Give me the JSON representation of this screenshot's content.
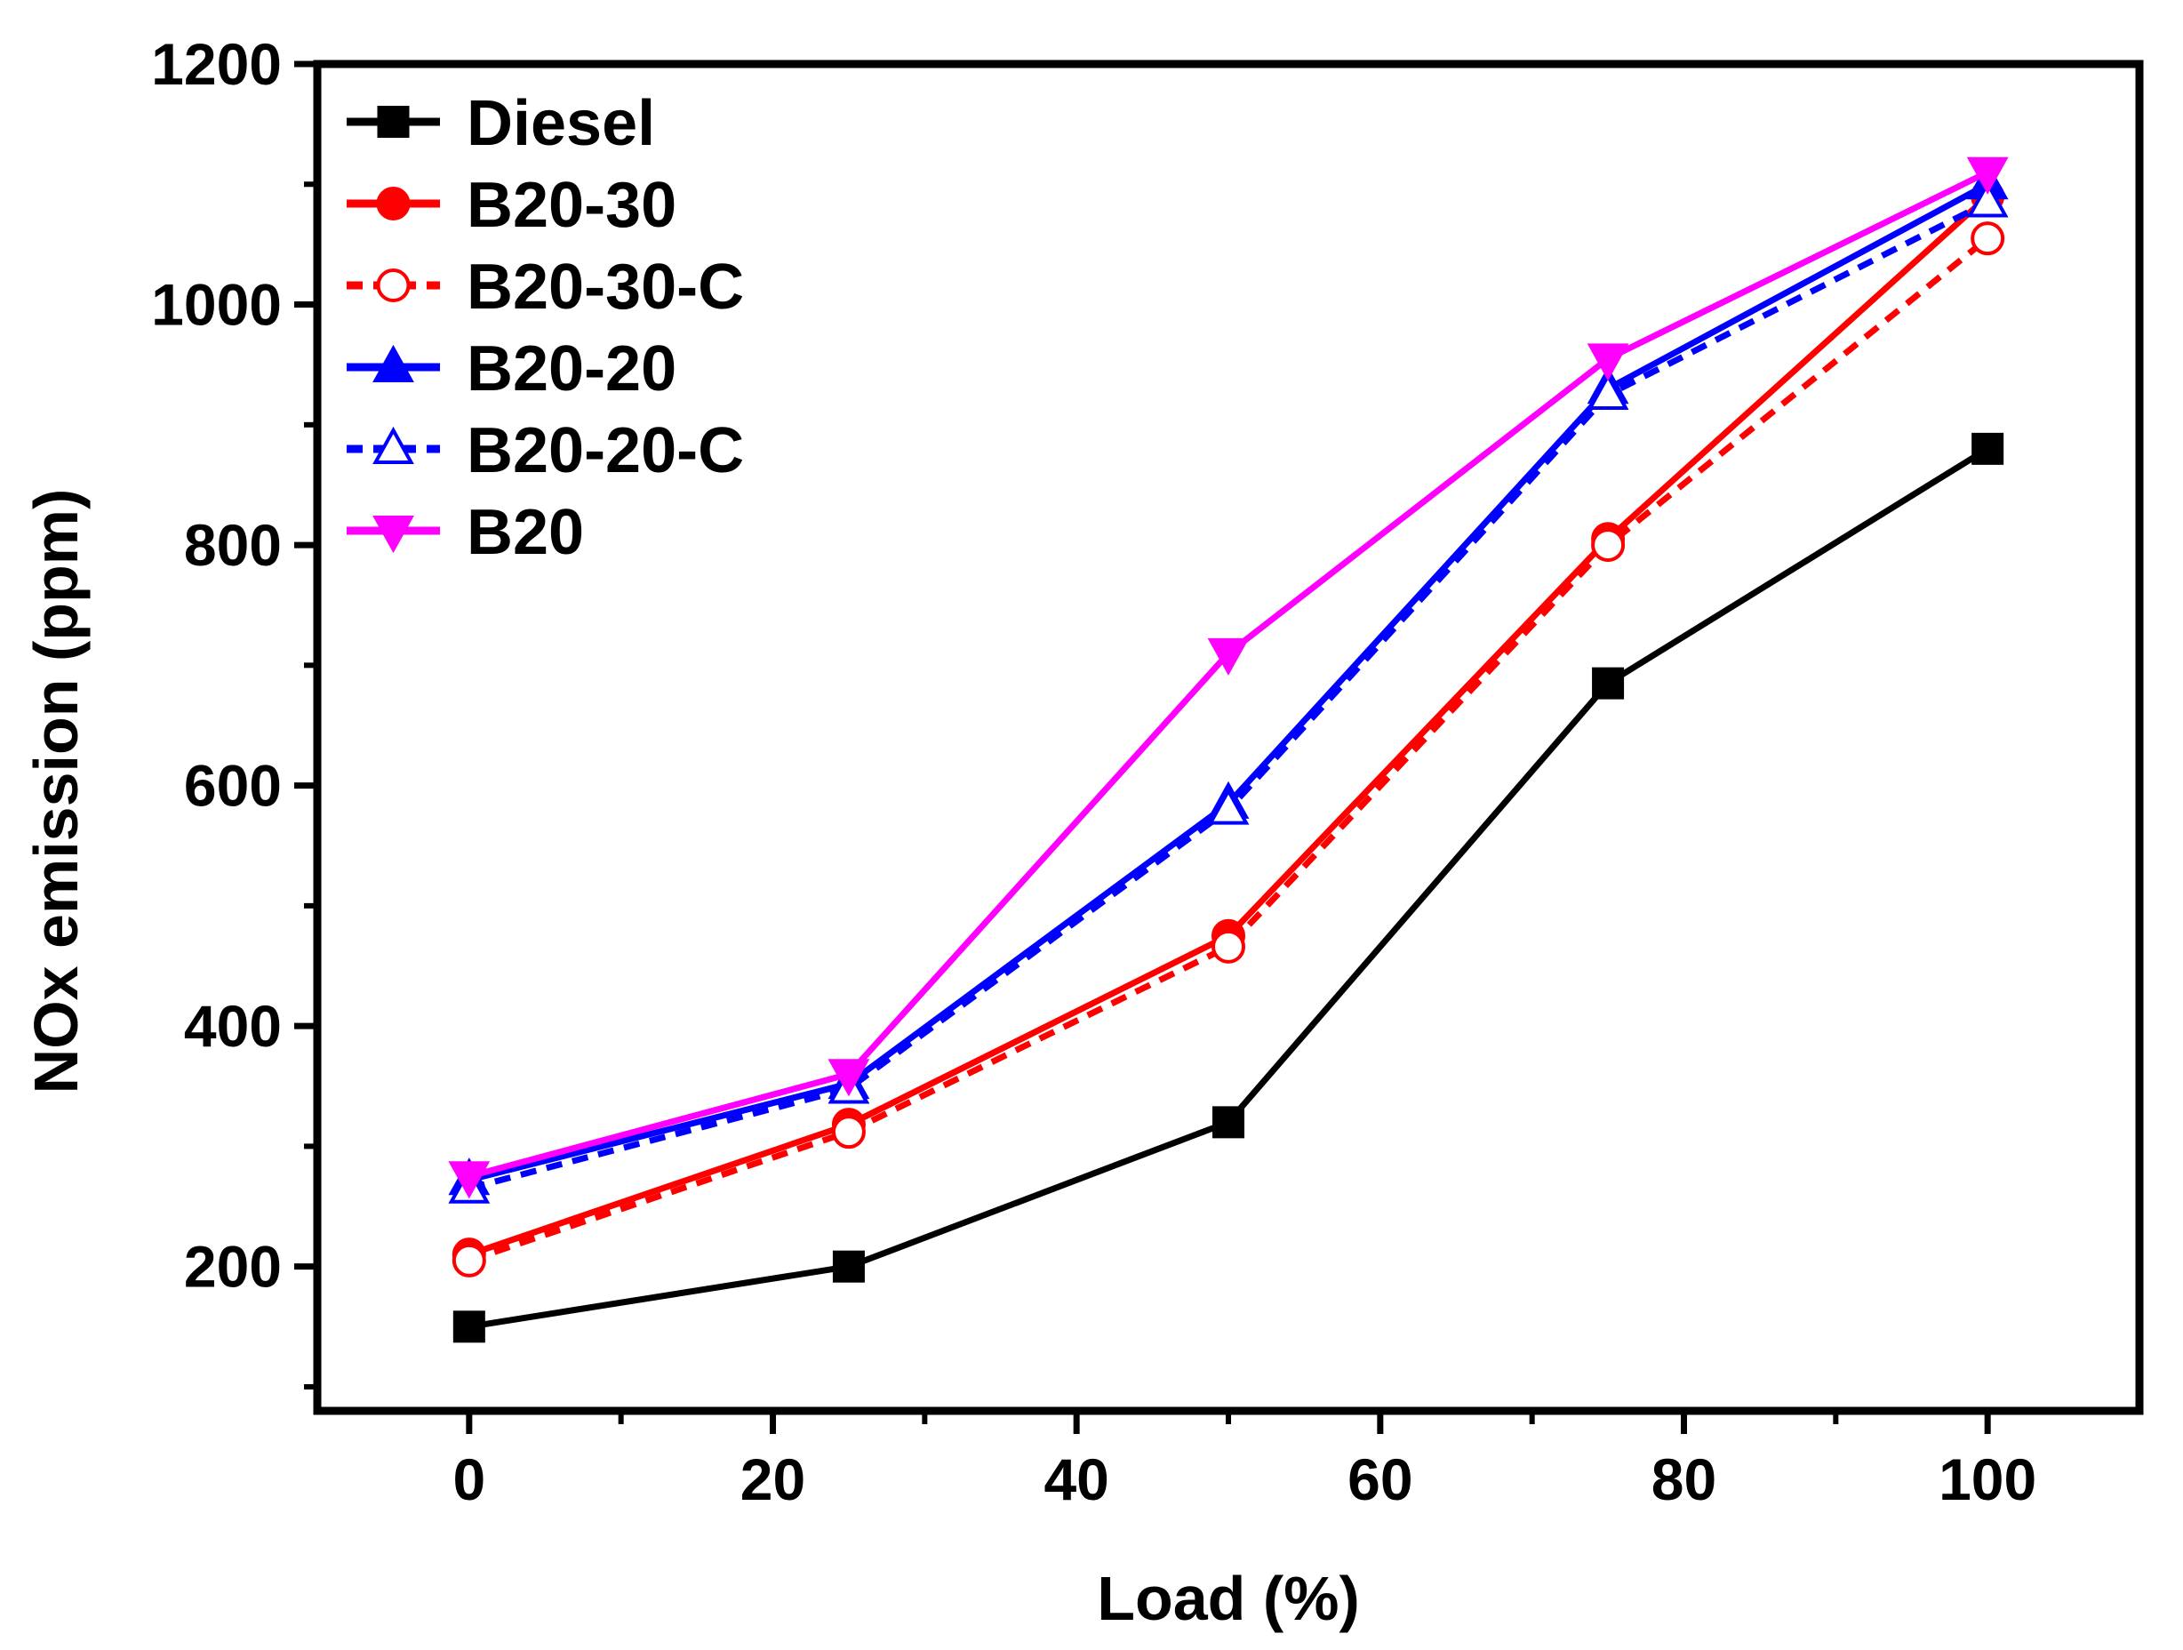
{
  "chart_data": {
    "type": "line",
    "title": "",
    "xlabel": "Load (%)",
    "ylabel": "NOx emission (ppm)",
    "xlim": [
      -10,
      110
    ],
    "ylim": [
      80,
      1200
    ],
    "xticks": [
      0,
      20,
      40,
      60,
      80,
      100
    ],
    "yticks": [
      200,
      400,
      600,
      800,
      1000,
      1200
    ],
    "grid": false,
    "legend_position": "top-left",
    "x": [
      0,
      25,
      50,
      75,
      100
    ],
    "series": [
      {
        "name": "Diesel",
        "color": "#000000",
        "marker": "square-filled",
        "line": "solid",
        "values": [
          150,
          200,
          320,
          685,
          880
        ]
      },
      {
        "name": "B20-30",
        "color": "#ff0000",
        "marker": "circle-filled",
        "line": "solid",
        "values": [
          210,
          318,
          475,
          805,
          1090
        ]
      },
      {
        "name": "B20-30-C",
        "color": "#ff0000",
        "marker": "circle-open",
        "line": "dashed",
        "values": [
          205,
          312,
          466,
          800,
          1055
        ]
      },
      {
        "name": "B20-20",
        "color": "#0000ff",
        "marker": "triangle-up-filled",
        "line": "solid",
        "values": [
          272,
          352,
          585,
          930,
          1100
        ]
      },
      {
        "name": "B20-20-C",
        "color": "#0000ff",
        "marker": "triangle-up-open",
        "line": "dashed",
        "values": [
          265,
          348,
          580,
          925,
          1085
        ]
      },
      {
        "name": "B20",
        "color": "#ff00ff",
        "marker": "triangle-down-filled",
        "line": "solid",
        "values": [
          275,
          360,
          710,
          955,
          1110
        ]
      }
    ]
  }
}
